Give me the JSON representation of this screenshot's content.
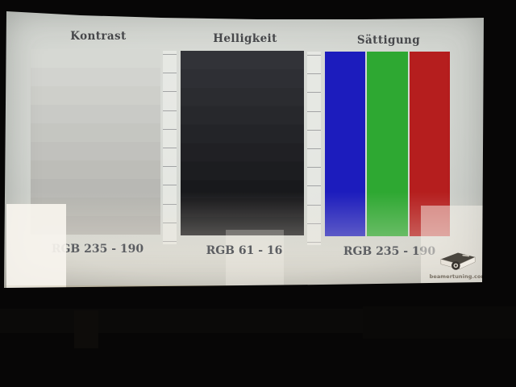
{
  "panels": [
    {
      "title": "Kontrast",
      "label": "RGB 235 - 190",
      "type": "steps",
      "range": [
        235,
        190
      ],
      "step_count": 10,
      "steps": [
        "#d6d8d3",
        "#d2d3cf",
        "#cecfca",
        "#c9cac6",
        "#c5c6c1",
        "#c1c1bd",
        "#bdbdb8",
        "#b8b8b4",
        "#b4b4af",
        "#b0afab"
      ]
    },
    {
      "title": "Helligkeit",
      "label": "RGB 61 - 16",
      "type": "steps",
      "range": [
        61,
        16
      ],
      "step_count": 10,
      "steps": [
        "#323338",
        "#2e2f34",
        "#2b2c30",
        "#27282c",
        "#232428",
        "#202024",
        "#1c1d20",
        "#18191c",
        "#151518",
        "#111215"
      ]
    },
    {
      "title": "Sättigung",
      "label": "RGB 235 - 190",
      "type": "bars",
      "bars": [
        {
          "name": "blue",
          "color": "#1c1cbd"
        },
        {
          "name": "green",
          "color": "#2ea832"
        },
        {
          "name": "red",
          "color": "#b51e1e"
        }
      ]
    }
  ],
  "ticks": {
    "count": 11,
    "color": "#97989a"
  },
  "logo": {
    "icon": "projector-icon",
    "text": "beamertuning.com"
  },
  "colors": {
    "screen_white": "#d3d6d1",
    "room_black": "#070606",
    "heading_text": "#46474a",
    "label_text": "#5c5e62"
  }
}
